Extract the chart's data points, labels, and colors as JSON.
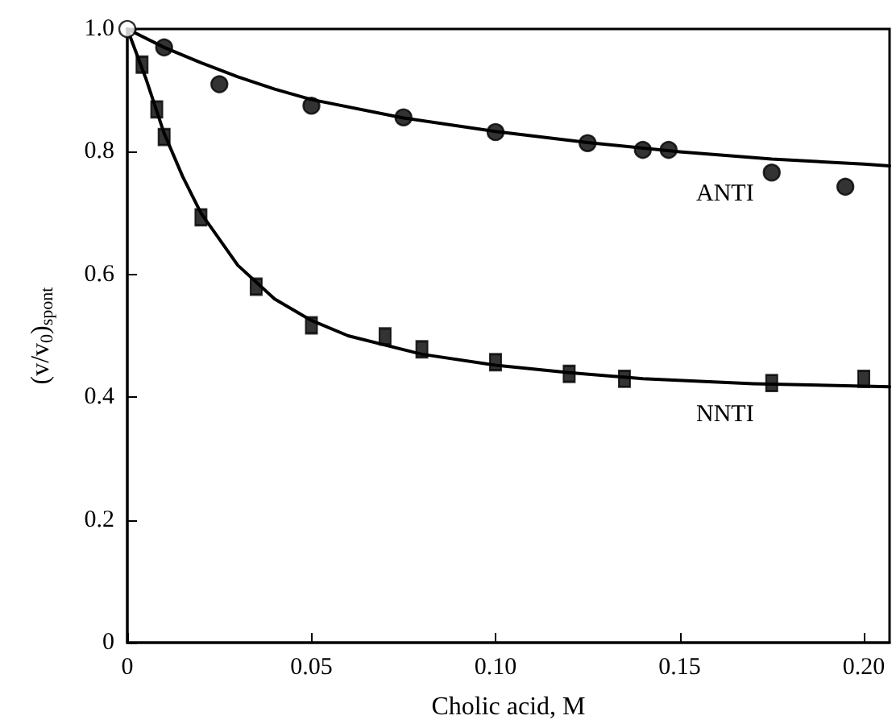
{
  "chart_data": {
    "type": "scatter",
    "xlabel": "Cholic acid, M",
    "ylabel": "(v/v$_{0}$)$_{spont}$",
    "xlim": [
      0,
      0.207
    ],
    "ylim": [
      0,
      1.0
    ],
    "xticks": [
      0,
      {
        "value": 0.05,
        "label": "0.05"
      },
      {
        "value": 0.1,
        "label": "0.10"
      },
      {
        "value": 0.15,
        "label": "0.15"
      },
      {
        "value": 0.2,
        "label": "0.20"
      }
    ],
    "yticks": [
      0,
      {
        "value": 0.2,
        "label": "0.2"
      },
      {
        "value": 0.4,
        "label": "0.4"
      },
      {
        "value": 0.6,
        "label": "0.6"
      },
      {
        "value": 0.8,
        "label": "0.8"
      },
      {
        "value": 1,
        "label": "1.0"
      }
    ],
    "grid": false,
    "series": [
      {
        "marker": "circle",
        "color": "#000000",
        "x": [
          0.01,
          0.025,
          0.05,
          0.075,
          0.1,
          0.125,
          0.14,
          0.147,
          0.175,
          0.195
        ],
        "values": [
          0.97,
          0.91,
          0.875,
          0.856,
          0.832,
          0.814,
          0.803,
          0.803,
          0.766,
          0.743
        ]
      },
      {
        "marker": "square",
        "color": "#000000",
        "x": [
          0.004,
          0.008,
          0.01,
          0.02,
          0.035,
          0.05,
          0.07,
          0.08,
          0.1,
          0.12,
          0.135,
          0.175,
          0.2
        ],
        "values": [
          0.942,
          0.869,
          0.824,
          0.693,
          0.58,
          0.517,
          0.499,
          0.478,
          0.457,
          0.438,
          0.43,
          0.423,
          0.43
        ]
      },
      {
        "marker": "circle",
        "color": "#ffffff",
        "x": [
          0
        ],
        "values": [
          1.0
        ]
      },
      {
        "type": "line",
        "color": "#000000",
        "line_style": "solid",
        "x": [
          0,
          0.01,
          0.02,
          0.03,
          0.04,
          0.05,
          0.075,
          0.1,
          0.125,
          0.15,
          0.175,
          0.2,
          0.207
        ],
        "values": [
          1,
          0.97,
          0.945,
          0.922,
          0.902,
          0.885,
          0.855,
          0.833,
          0.815,
          0.8,
          0.788,
          0.78,
          0.777
        ]
      },
      {
        "type": "line",
        "color": "#000000",
        "line_style": "solid",
        "x": [
          0,
          0.005,
          0.01,
          0.015,
          0.02,
          0.03,
          0.04,
          0.05,
          0.06,
          0.08,
          0.1,
          0.12,
          0.14,
          0.17,
          0.207
        ],
        "values": [
          1,
          0.92,
          0.83,
          0.76,
          0.7,
          0.615,
          0.56,
          0.525,
          0.5,
          0.47,
          0.452,
          0.44,
          0.43,
          0.422,
          0.417
        ]
      }
    ],
    "annotations": [
      "ANTI",
      "NNTI"
    ]
  }
}
